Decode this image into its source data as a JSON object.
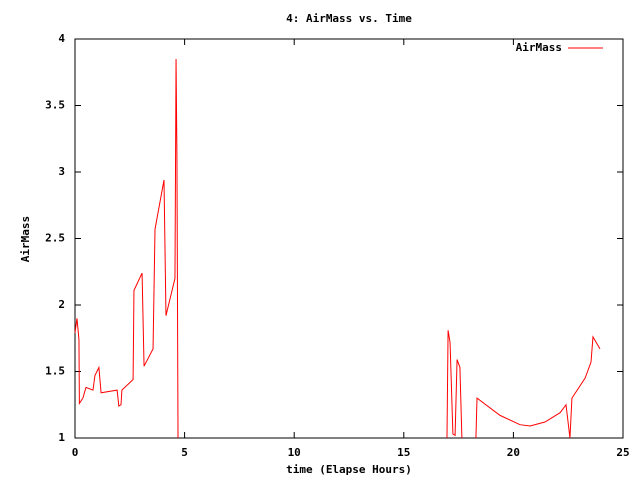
{
  "chart_data": {
    "type": "line",
    "title": "4: AirMass vs. Time",
    "x_label": "time (Elapse Hours)",
    "y_label": "AirMass",
    "x": [
      0,
      0.09,
      0.18,
      0.2,
      0.36,
      0.5,
      0.82,
      0.91,
      1.09,
      1.19,
      1.92,
      2.0,
      2.1,
      2.14,
      2.65,
      2.69,
      3.06,
      3.15,
      3.56,
      3.65,
      4.06,
      4.15,
      4.56,
      4.61,
      4.65,
      4.7,
      10.8,
      16.97,
      17.02,
      17.11,
      17.24,
      17.34,
      17.43,
      17.56,
      17.65,
      18.0,
      18.29,
      18.34,
      19.39,
      20.3,
      20.76,
      21.44,
      22.13,
      22.4,
      22.58,
      22.67,
      23.27,
      23.54,
      23.63,
      23.95
    ],
    "series": [
      {
        "name": "AirMass",
        "color": "#ff0000",
        "values": [
          1.79,
          1.9,
          1.74,
          1.26,
          1.3,
          1.38,
          1.36,
          1.47,
          1.53,
          1.34,
          1.36,
          1.24,
          1.25,
          1.36,
          1.44,
          2.11,
          2.24,
          1.54,
          1.67,
          2.57,
          2.94,
          1.92,
          2.2,
          3.85,
          3.12,
          1.0,
          null,
          1.0,
          1.81,
          1.72,
          1.03,
          1.02,
          1.59,
          1.53,
          1.0,
          null,
          1.0,
          1.3,
          1.17,
          1.1,
          1.09,
          1.12,
          1.19,
          1.25,
          1.0,
          1.3,
          1.45,
          1.57,
          1.76,
          1.67
        ]
      }
    ],
    "xlim": [
      0,
      25
    ],
    "xticks": [
      0,
      5,
      10,
      15,
      20,
      25
    ],
    "ylim": [
      1,
      4
    ],
    "yticks": [
      1,
      1.5,
      2,
      2.5,
      3,
      3.5,
      4
    ],
    "grid": false,
    "legend": "top-right"
  }
}
